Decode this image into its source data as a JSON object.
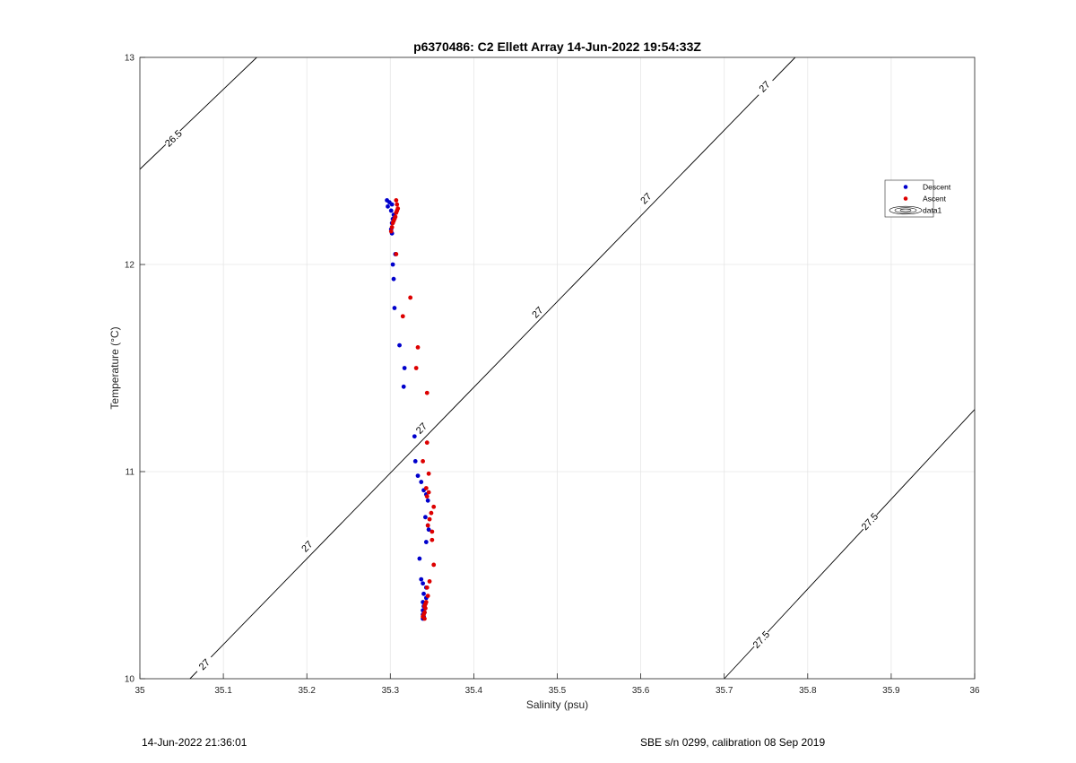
{
  "chart_data": {
    "type": "scatter",
    "title": "p6370486: C2 Ellett Array 14-Jun-2022 19:54:33Z",
    "xlabel": "Salinity (psu)",
    "ylabel": "Temperature (°C)",
    "xlim": [
      35,
      36
    ],
    "ylim": [
      10,
      13
    ],
    "xticks": [
      35,
      35.1,
      35.2,
      35.3,
      35.4,
      35.5,
      35.6,
      35.7,
      35.8,
      35.9,
      36
    ],
    "xtick_labels": [
      "35",
      "35.1",
      "35.2",
      "35.3",
      "35.4",
      "35.5",
      "35.6",
      "35.7",
      "35.8",
      "35.9",
      "36"
    ],
    "yticks": [
      10,
      11,
      12,
      13
    ],
    "ytick_labels": [
      "10",
      "11",
      "12",
      "13"
    ],
    "grid": true,
    "legend_position": "right",
    "series": [
      {
        "name": "Descent",
        "color": "#0000cc",
        "points": [
          [
            35.296,
            12.31
          ],
          [
            35.299,
            12.3
          ],
          [
            35.302,
            12.29
          ],
          [
            35.297,
            12.28
          ],
          [
            35.301,
            12.26
          ],
          [
            35.304,
            12.24
          ],
          [
            35.303,
            12.22
          ],
          [
            35.302,
            12.2
          ],
          [
            35.301,
            12.17
          ],
          [
            35.302,
            12.15
          ],
          [
            35.306,
            12.05
          ],
          [
            35.303,
            12.0
          ],
          [
            35.304,
            11.93
          ],
          [
            35.305,
            11.79
          ],
          [
            35.311,
            11.61
          ],
          [
            35.317,
            11.5
          ],
          [
            35.316,
            11.41
          ],
          [
            35.329,
            11.17
          ],
          [
            35.33,
            11.05
          ],
          [
            35.333,
            10.98
          ],
          [
            35.337,
            10.95
          ],
          [
            35.34,
            10.91
          ],
          [
            35.343,
            10.89
          ],
          [
            35.345,
            10.86
          ],
          [
            35.342,
            10.78
          ],
          [
            35.345,
            10.74
          ],
          [
            35.346,
            10.72
          ],
          [
            35.343,
            10.66
          ],
          [
            35.335,
            10.58
          ],
          [
            35.337,
            10.48
          ],
          [
            35.339,
            10.46
          ],
          [
            35.343,
            10.44
          ],
          [
            35.34,
            10.41
          ],
          [
            35.343,
            10.39
          ],
          [
            35.339,
            10.37
          ],
          [
            35.34,
            10.35
          ],
          [
            35.339,
            10.33
          ],
          [
            35.341,
            10.32
          ],
          [
            35.339,
            10.31
          ],
          [
            35.34,
            10.3
          ],
          [
            35.339,
            10.29
          ]
        ]
      },
      {
        "name": "Ascent",
        "color": "#dd0000",
        "points": [
          [
            35.307,
            12.31
          ],
          [
            35.308,
            12.29
          ],
          [
            35.309,
            12.27
          ],
          [
            35.308,
            12.26
          ],
          [
            35.307,
            12.25
          ],
          [
            35.306,
            12.23
          ],
          [
            35.305,
            12.22
          ],
          [
            35.304,
            12.21
          ],
          [
            35.303,
            12.2
          ],
          [
            35.302,
            12.18
          ],
          [
            35.301,
            12.16
          ],
          [
            35.307,
            12.05
          ],
          [
            35.324,
            11.84
          ],
          [
            35.315,
            11.75
          ],
          [
            35.333,
            11.6
          ],
          [
            35.331,
            11.5
          ],
          [
            35.344,
            11.38
          ],
          [
            35.344,
            11.14
          ],
          [
            35.339,
            11.05
          ],
          [
            35.346,
            10.99
          ],
          [
            35.343,
            10.92
          ],
          [
            35.346,
            10.9
          ],
          [
            35.344,
            10.88
          ],
          [
            35.352,
            10.83
          ],
          [
            35.349,
            10.8
          ],
          [
            35.347,
            10.77
          ],
          [
            35.345,
            10.74
          ],
          [
            35.35,
            10.71
          ],
          [
            35.35,
            10.67
          ],
          [
            35.352,
            10.55
          ],
          [
            35.347,
            10.47
          ],
          [
            35.344,
            10.44
          ],
          [
            35.345,
            10.4
          ],
          [
            35.343,
            10.37
          ],
          [
            35.342,
            10.36
          ],
          [
            35.341,
            10.35
          ],
          [
            35.342,
            10.34
          ],
          [
            35.341,
            10.32
          ],
          [
            35.34,
            10.31
          ],
          [
            35.339,
            10.3
          ],
          [
            35.341,
            10.29
          ]
        ]
      }
    ],
    "legend_extra": "data1",
    "contours": [
      {
        "level": "26.5",
        "points": [
          [
            35.0,
            12.46
          ],
          [
            35.14,
            13.0
          ]
        ],
        "labels": [
          [
            35.04,
            12.61
          ]
        ]
      },
      {
        "level": "27",
        "points": [
          [
            35.06,
            10.0
          ],
          [
            35.785,
            13.0
          ]
        ],
        "labels": [
          [
            35.077,
            10.07
          ],
          [
            35.2,
            10.64
          ],
          [
            35.337,
            11.21
          ],
          [
            35.476,
            11.77
          ],
          [
            35.606,
            12.32
          ],
          [
            35.748,
            12.86
          ]
        ]
      },
      {
        "level": "27.5",
        "points": [
          [
            35.7,
            10.0
          ],
          [
            36.0,
            11.3
          ]
        ],
        "labels": [
          [
            35.744,
            10.19
          ],
          [
            35.874,
            10.76
          ]
        ]
      }
    ]
  },
  "footer": {
    "timestamp": "14-Jun-2022 21:36:01",
    "calibration": "SBE s/n 0299, calibration 08 Sep 2019"
  }
}
